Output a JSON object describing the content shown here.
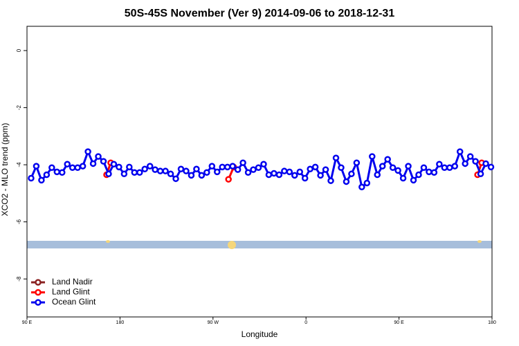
{
  "chart_data": {
    "type": "line",
    "title": "50S-45S November (Ver 9)   2014-09-06 to 2018-12-31",
    "x_label": "Longitude",
    "y_label": "XCO2 - MLO trend (ppm)",
    "xlim": [
      90,
      540
    ],
    "ylim": [
      -9.33,
      0.85
    ],
    "xticks": [
      {
        "value": 90,
        "label": "90 E"
      },
      180,
      {
        "value": 270,
        "label": "90 W"
      },
      {
        "value": 360,
        "label": "0"
      },
      {
        "value": 450,
        "label": "90 E"
      },
      {
        "value": 540,
        "label": "180"
      }
    ],
    "yticks": [
      0,
      -2,
      -4,
      -6,
      -8
    ],
    "legend": "bottom-left",
    "series": [
      {
        "name": "Land Nadir",
        "color": "#8b2323",
        "x": [],
        "values": []
      },
      {
        "name": "Land Glint",
        "color": "#ff0000",
        "x": [
          167,
          171,
          178,
          285,
          290,
          297,
          526,
          530
        ],
        "values": [
          -4.35,
          -3.93,
          null,
          -4.51,
          -4.08,
          null,
          -4.35,
          -3.93
        ]
      },
      {
        "name": "Ocean Glint",
        "color": "#0000ee",
        "x": [
          94,
          99,
          104,
          109,
          114,
          119,
          124,
          129,
          134,
          139,
          144,
          149,
          154,
          159,
          164,
          169,
          174,
          179,
          184,
          189,
          194,
          199,
          204,
          209,
          214,
          219,
          224,
          229,
          234,
          239,
          244,
          249,
          254,
          259,
          264,
          269,
          274,
          279,
          284,
          289,
          294,
          299,
          304,
          309,
          314,
          319,
          324,
          329,
          334,
          339,
          344,
          349,
          354,
          359,
          364,
          369,
          374,
          379,
          384,
          389,
          394,
          399,
          404,
          409,
          414,
          419,
          424,
          429,
          434,
          439,
          444,
          449,
          454,
          459,
          464,
          469,
          474,
          479,
          484,
          489,
          494,
          499,
          504,
          509,
          514,
          519,
          524,
          529,
          534,
          539
        ],
        "values": [
          -4.47,
          -4.05,
          -4.54,
          -4.35,
          -4.1,
          -4.25,
          -4.27,
          -3.98,
          -4.1,
          -4.1,
          -4.05,
          -3.54,
          -3.96,
          -3.71,
          -3.88,
          -4.32,
          -3.98,
          -4.08,
          -4.32,
          -4.08,
          -4.27,
          -4.27,
          -4.15,
          -4.05,
          -4.17,
          -4.22,
          -4.22,
          -4.32,
          -4.49,
          -4.15,
          -4.22,
          -4.37,
          -4.15,
          -4.37,
          -4.27,
          -4.05,
          -4.25,
          -4.08,
          -4.08,
          -4.05,
          -4.17,
          -3.93,
          -4.27,
          -4.17,
          -4.1,
          -3.98,
          -4.35,
          -4.3,
          -4.35,
          -4.22,
          -4.25,
          -4.37,
          -4.25,
          -4.47,
          -4.15,
          -4.08,
          -4.37,
          -4.17,
          -4.56,
          -3.76,
          -4.1,
          -4.59,
          -4.32,
          -3.93,
          -4.78,
          -4.64,
          -3.71,
          -4.35,
          -4.05,
          -3.81,
          -4.1,
          -4.2,
          -4.47,
          -4.05,
          -4.54,
          -4.35,
          -4.1,
          -4.25,
          -4.27,
          -3.98,
          -4.1,
          -4.1,
          -4.05,
          -3.54,
          -3.96,
          -3.71,
          -3.88,
          -4.32,
          -3.96,
          -4.08
        ]
      }
    ]
  }
}
